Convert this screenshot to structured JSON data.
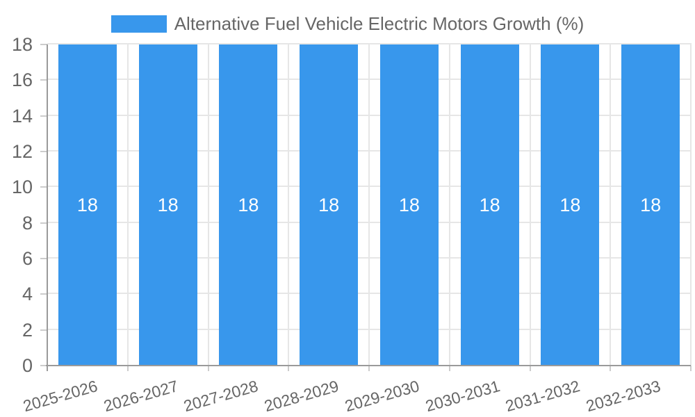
{
  "legend": {
    "label": "Alternative Fuel Vehicle Electric Motors Growth (%)"
  },
  "chart_data": {
    "type": "bar",
    "title": "Alternative Fuel Vehicle Electric Motors Growth (%)",
    "series_name": "Alternative Fuel Vehicle Electric Motors Growth (%)",
    "categories": [
      "2025-2026",
      "2026-2027",
      "2027-2028",
      "2028-2029",
      "2029-2030",
      "2030-2031",
      "2031-2032",
      "2032-2033"
    ],
    "values": [
      18,
      18,
      18,
      18,
      18,
      18,
      18,
      18
    ],
    "data_labels": [
      "18",
      "18",
      "18",
      "18",
      "18",
      "18",
      "18",
      "18"
    ],
    "xlabel": "",
    "ylabel": "",
    "ylim": [
      0,
      18
    ],
    "yticks": [
      0,
      2,
      4,
      6,
      8,
      10,
      12,
      14,
      16,
      18
    ],
    "grid": true,
    "legend_position": "top",
    "x_label_rotation_deg": -16
  },
  "colors": {
    "bar": "#3897ec",
    "grid_line": "#e6e6e6",
    "axis_line": "#9a9a9a",
    "tick_mark": "#cccccc",
    "text": "#666666",
    "value_label": "#ffffff",
    "background": "#ffffff"
  }
}
